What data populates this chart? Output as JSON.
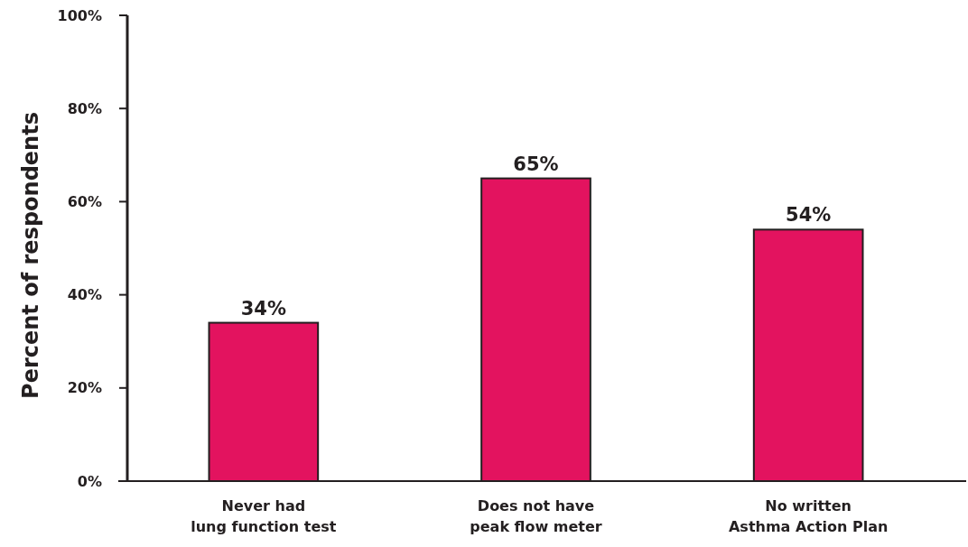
{
  "chart_data": {
    "type": "bar",
    "ylabel": "Percent of respondents",
    "categories": [
      "Never had\nlung function test",
      "Does not have\npeak flow meter",
      "No written\nAsthma Action Plan"
    ],
    "values": [
      34,
      65,
      54
    ],
    "color": "#e3135f",
    "ylim": [
      0,
      100
    ],
    "yticks": [
      {
        "value": 0,
        "label": "0%"
      },
      {
        "value": 20,
        "label": "20%"
      },
      {
        "value": 40,
        "label": "40%"
      },
      {
        "value": 60,
        "label": "60%"
      },
      {
        "value": 80,
        "label": "80%"
      },
      {
        "value": 100,
        "label": "100%"
      }
    ],
    "value_labels": [
      "34%",
      "65%",
      "54%"
    ],
    "grid": false
  }
}
